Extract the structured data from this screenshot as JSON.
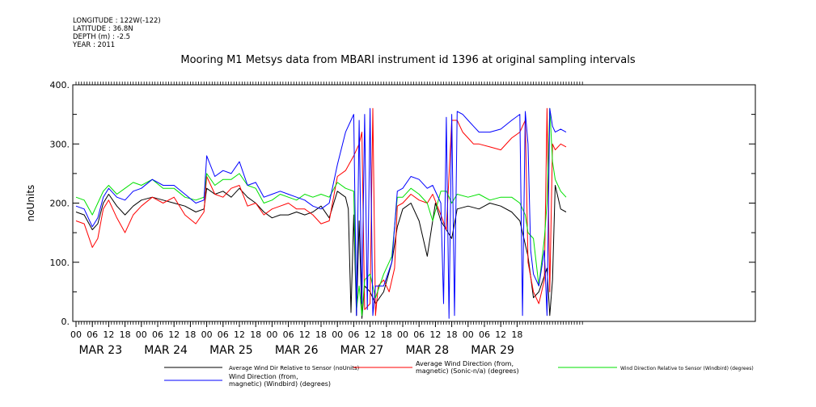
{
  "header": {
    "longitude": "LONGITUDE : 122W(-122)",
    "latitude": "LATITUDE : 36.8N",
    "depth": "DEPTH (m) : -2.5",
    "year": "YEAR : 2011"
  },
  "chart_data": {
    "type": "line",
    "title": "Mooring M1 Metsys data from MBARI instrument id 1396 at original sampling intervals",
    "ylabel": "noUnits",
    "xlabel": "",
    "ylim": [
      0,
      400
    ],
    "yticks": [
      0,
      100,
      200,
      300,
      400
    ],
    "ytick_labels": [
      "0.",
      "100.",
      "200.",
      "300.",
      "400."
    ],
    "x_hours_labels": [
      "00",
      "06",
      "12",
      "18",
      "00",
      "06",
      "12",
      "18",
      "00",
      "06",
      "12",
      "18",
      "00",
      "06",
      "12",
      "18",
      "00",
      "06",
      "12",
      "18",
      "00",
      "06",
      "12",
      "18",
      "00",
      "06",
      "12",
      "18"
    ],
    "x_day_labels": [
      "MAR 23",
      "MAR 24",
      "MAR 25",
      "MAR 26",
      "MAR 27",
      "MAR 28",
      "MAR 29"
    ],
    "grid": false,
    "legend_position": "bottom",
    "series": [
      {
        "name": "Average Wind Dir Relative to Sensor (noUnits)",
        "color": "#000000",
        "points": [
          [
            0,
            185
          ],
          [
            3,
            180
          ],
          [
            6,
            155
          ],
          [
            8,
            165
          ],
          [
            10,
            200
          ],
          [
            12,
            215
          ],
          [
            15,
            195
          ],
          [
            18,
            180
          ],
          [
            21,
            195
          ],
          [
            24,
            205
          ],
          [
            28,
            210
          ],
          [
            32,
            205
          ],
          [
            36,
            200
          ],
          [
            40,
            195
          ],
          [
            44,
            185
          ],
          [
            47,
            190
          ],
          [
            48,
            225
          ],
          [
            51,
            215
          ],
          [
            54,
            220
          ],
          [
            57,
            210
          ],
          [
            60,
            225
          ],
          [
            63,
            210
          ],
          [
            66,
            200
          ],
          [
            69,
            185
          ],
          [
            72,
            175
          ],
          [
            75,
            180
          ],
          [
            78,
            180
          ],
          [
            81,
            185
          ],
          [
            84,
            180
          ],
          [
            87,
            185
          ],
          [
            90,
            195
          ],
          [
            93,
            175
          ],
          [
            96,
            220
          ],
          [
            99,
            210
          ],
          [
            100,
            190
          ],
          [
            101,
            15
          ],
          [
            102,
            180
          ],
          [
            103,
            10
          ],
          [
            104,
            170
          ],
          [
            105,
            5
          ],
          [
            106,
            60
          ],
          [
            108,
            50
          ],
          [
            110,
            30
          ],
          [
            113,
            50
          ],
          [
            116,
            100
          ],
          [
            118,
            160
          ],
          [
            120,
            190
          ],
          [
            123,
            200
          ],
          [
            126,
            170
          ],
          [
            129,
            110
          ],
          [
            132,
            200
          ],
          [
            134,
            170
          ],
          [
            136,
            155
          ],
          [
            138,
            140
          ],
          [
            140,
            190
          ],
          [
            144,
            195
          ],
          [
            148,
            190
          ],
          [
            152,
            200
          ],
          [
            156,
            195
          ],
          [
            160,
            185
          ],
          [
            163,
            170
          ],
          [
            166,
            110
          ],
          [
            168,
            40
          ],
          [
            170,
            50
          ],
          [
            173,
            90
          ],
          [
            174,
            10
          ],
          [
            175,
            70
          ],
          [
            176,
            230
          ],
          [
            178,
            190
          ],
          [
            180,
            185
          ]
        ]
      },
      {
        "name": "Average Wind Direction (from, magnetic) (Sonic-n/a) (degrees)",
        "color": "#ff0000",
        "points": [
          [
            0,
            170
          ],
          [
            3,
            165
          ],
          [
            6,
            125
          ],
          [
            8,
            140
          ],
          [
            10,
            190
          ],
          [
            12,
            205
          ],
          [
            15,
            175
          ],
          [
            18,
            150
          ],
          [
            21,
            180
          ],
          [
            24,
            195
          ],
          [
            28,
            210
          ],
          [
            32,
            200
          ],
          [
            36,
            210
          ],
          [
            40,
            180
          ],
          [
            44,
            165
          ],
          [
            47,
            185
          ],
          [
            48,
            245
          ],
          [
            51,
            215
          ],
          [
            54,
            210
          ],
          [
            57,
            225
          ],
          [
            60,
            230
          ],
          [
            63,
            195
          ],
          [
            66,
            200
          ],
          [
            69,
            180
          ],
          [
            72,
            190
          ],
          [
            75,
            195
          ],
          [
            78,
            200
          ],
          [
            81,
            190
          ],
          [
            84,
            190
          ],
          [
            87,
            180
          ],
          [
            90,
            165
          ],
          [
            93,
            170
          ],
          [
            96,
            245
          ],
          [
            99,
            255
          ],
          [
            102,
            280
          ],
          [
            104,
            300
          ],
          [
            105,
            320
          ],
          [
            106,
            20
          ],
          [
            108,
            30
          ],
          [
            109,
            360
          ],
          [
            110,
            10
          ],
          [
            111,
            60
          ],
          [
            113,
            70
          ],
          [
            115,
            50
          ],
          [
            117,
            90
          ],
          [
            118,
            195
          ],
          [
            120,
            200
          ],
          [
            123,
            215
          ],
          [
            126,
            205
          ],
          [
            129,
            200
          ],
          [
            131,
            215
          ],
          [
            134,
            180
          ],
          [
            136,
            155
          ],
          [
            138,
            340
          ],
          [
            140,
            340
          ],
          [
            142,
            320
          ],
          [
            144,
            310
          ],
          [
            146,
            300
          ],
          [
            148,
            300
          ],
          [
            152,
            295
          ],
          [
            156,
            290
          ],
          [
            160,
            310
          ],
          [
            163,
            320
          ],
          [
            165,
            340
          ],
          [
            166,
            100
          ],
          [
            168,
            50
          ],
          [
            170,
            30
          ],
          [
            172,
            70
          ],
          [
            173,
            360
          ],
          [
            174,
            50
          ],
          [
            175,
            300
          ],
          [
            176,
            290
          ],
          [
            178,
            300
          ],
          [
            180,
            295
          ]
        ]
      },
      {
        "name": "Wind Direction Relative to Sensor (Windbird) (degrees)",
        "color": "#00e000",
        "points": [
          [
            0,
            210
          ],
          [
            3,
            205
          ],
          [
            6,
            180
          ],
          [
            8,
            200
          ],
          [
            10,
            220
          ],
          [
            12,
            230
          ],
          [
            15,
            215
          ],
          [
            18,
            225
          ],
          [
            21,
            235
          ],
          [
            24,
            230
          ],
          [
            28,
            240
          ],
          [
            32,
            225
          ],
          [
            36,
            225
          ],
          [
            40,
            210
          ],
          [
            44,
            205
          ],
          [
            47,
            210
          ],
          [
            48,
            250
          ],
          [
            51,
            230
          ],
          [
            54,
            240
          ],
          [
            57,
            240
          ],
          [
            60,
            250
          ],
          [
            63,
            230
          ],
          [
            66,
            225
          ],
          [
            69,
            200
          ],
          [
            72,
            205
          ],
          [
            75,
            215
          ],
          [
            78,
            210
          ],
          [
            81,
            205
          ],
          [
            84,
            215
          ],
          [
            87,
            210
          ],
          [
            90,
            215
          ],
          [
            93,
            210
          ],
          [
            96,
            235
          ],
          [
            99,
            225
          ],
          [
            102,
            220
          ],
          [
            103,
            20
          ],
          [
            104,
            60
          ],
          [
            105,
            10
          ],
          [
            106,
            70
          ],
          [
            108,
            80
          ],
          [
            110,
            40
          ],
          [
            113,
            80
          ],
          [
            116,
            110
          ],
          [
            118,
            210
          ],
          [
            120,
            210
          ],
          [
            123,
            225
          ],
          [
            126,
            215
          ],
          [
            129,
            200
          ],
          [
            131,
            170
          ],
          [
            134,
            220
          ],
          [
            136,
            220
          ],
          [
            138,
            200
          ],
          [
            140,
            215
          ],
          [
            144,
            210
          ],
          [
            148,
            215
          ],
          [
            152,
            205
          ],
          [
            156,
            210
          ],
          [
            160,
            210
          ],
          [
            163,
            200
          ],
          [
            165,
            180
          ],
          [
            166,
            150
          ],
          [
            168,
            140
          ],
          [
            170,
            60
          ],
          [
            172,
            140
          ],
          [
            173,
            200
          ],
          [
            174,
            360
          ],
          [
            175,
            270
          ],
          [
            176,
            240
          ],
          [
            178,
            220
          ],
          [
            180,
            210
          ]
        ]
      },
      {
        "name": "Wind Direction (from, magnetic) (Windbird) (degrees)",
        "color": "#0000ff",
        "points": [
          [
            0,
            195
          ],
          [
            3,
            190
          ],
          [
            6,
            160
          ],
          [
            8,
            175
          ],
          [
            10,
            210
          ],
          [
            12,
            225
          ],
          [
            15,
            210
          ],
          [
            18,
            205
          ],
          [
            21,
            220
          ],
          [
            24,
            225
          ],
          [
            28,
            240
          ],
          [
            32,
            230
          ],
          [
            36,
            230
          ],
          [
            40,
            215
          ],
          [
            44,
            200
          ],
          [
            47,
            205
          ],
          [
            48,
            280
          ],
          [
            51,
            245
          ],
          [
            54,
            255
          ],
          [
            57,
            250
          ],
          [
            60,
            270
          ],
          [
            63,
            230
          ],
          [
            66,
            235
          ],
          [
            69,
            210
          ],
          [
            72,
            215
          ],
          [
            75,
            220
          ],
          [
            78,
            215
          ],
          [
            81,
            210
          ],
          [
            84,
            205
          ],
          [
            87,
            195
          ],
          [
            90,
            190
          ],
          [
            93,
            200
          ],
          [
            96,
            265
          ],
          [
            99,
            320
          ],
          [
            101,
            340
          ],
          [
            102,
            350
          ],
          [
            103,
            10
          ],
          [
            104,
            340
          ],
          [
            105,
            30
          ],
          [
            106,
            350
          ],
          [
            107,
            20
          ],
          [
            108,
            360
          ],
          [
            109,
            10
          ],
          [
            110,
            60
          ],
          [
            113,
            60
          ],
          [
            116,
            100
          ],
          [
            118,
            220
          ],
          [
            120,
            225
          ],
          [
            123,
            245
          ],
          [
            126,
            240
          ],
          [
            129,
            225
          ],
          [
            131,
            230
          ],
          [
            134,
            200
          ],
          [
            135,
            30
          ],
          [
            136,
            345
          ],
          [
            137,
            5
          ],
          [
            138,
            350
          ],
          [
            139,
            10
          ],
          [
            140,
            355
          ],
          [
            142,
            350
          ],
          [
            144,
            340
          ],
          [
            146,
            330
          ],
          [
            148,
            320
          ],
          [
            152,
            320
          ],
          [
            156,
            325
          ],
          [
            160,
            340
          ],
          [
            163,
            350
          ],
          [
            164,
            10
          ],
          [
            165,
            355
          ],
          [
            166,
            300
          ],
          [
            167,
            120
          ],
          [
            168,
            80
          ],
          [
            170,
            60
          ],
          [
            172,
            120
          ],
          [
            173,
            10
          ],
          [
            174,
            360
          ],
          [
            175,
            330
          ],
          [
            176,
            320
          ],
          [
            178,
            325
          ],
          [
            180,
            320
          ]
        ]
      }
    ],
    "legend": [
      {
        "label": "Average Wind Dir Relative to Sensor (noUnits)",
        "color": "#000000"
      },
      {
        "label": "Average Wind Direction (from,\nmagnetic) (Sonic-n/a) (degrees)",
        "color": "#ff0000"
      },
      {
        "label": "Wind Direction Relative to Sensor (Windbird) (degrees)",
        "color": "#00e000"
      },
      {
        "label": "Wind Direction (from,\nmagnetic) (Windbird) (degrees)",
        "color": "#0000ff"
      }
    ]
  }
}
